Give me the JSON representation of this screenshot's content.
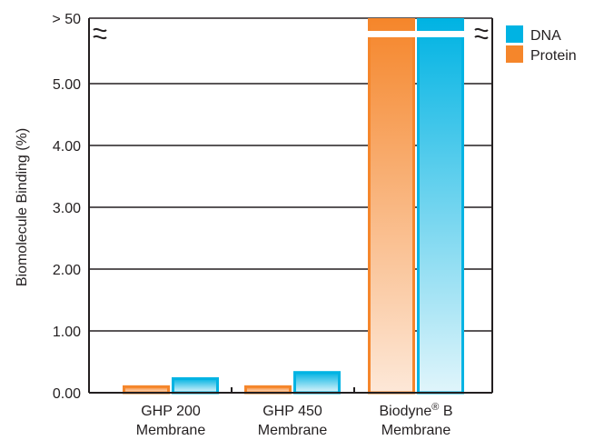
{
  "chart_data": {
    "type": "bar",
    "ylabel": "Biomolecule Binding (%)",
    "xlabel": "",
    "title": "",
    "categories": [
      {
        "line1": "GHP 200",
        "line2": "Membrane",
        "sup": "",
        "line1_tail": ""
      },
      {
        "line1": "GHP 450",
        "line2": "Membrane",
        "sup": "",
        "line1_tail": ""
      },
      {
        "line1": "Biodyne",
        "line2": "Membrane",
        "sup": "®",
        "line1_tail": " B"
      }
    ],
    "series": [
      {
        "name": "Protein",
        "values": [
          0.12,
          0.12,
          50
        ]
      },
      {
        "name": "DNA",
        "values": [
          0.25,
          0.35,
          50
        ]
      }
    ],
    "ylim": [
      0,
      6
    ],
    "axis_break": {
      "below": 5.5,
      "break_label": "> 50"
    },
    "y_ticks": [
      "0.00",
      "1.00",
      "2.00",
      "3.00",
      "4.00",
      "5.00"
    ],
    "grid": true,
    "legend_position": "top-right",
    "legend_order": [
      "DNA",
      "Protein"
    ],
    "colors": {
      "Protein": "#f5862b",
      "DNA": "#00b3e3",
      "text": "#231f20",
      "grid": "#231f20"
    }
  }
}
